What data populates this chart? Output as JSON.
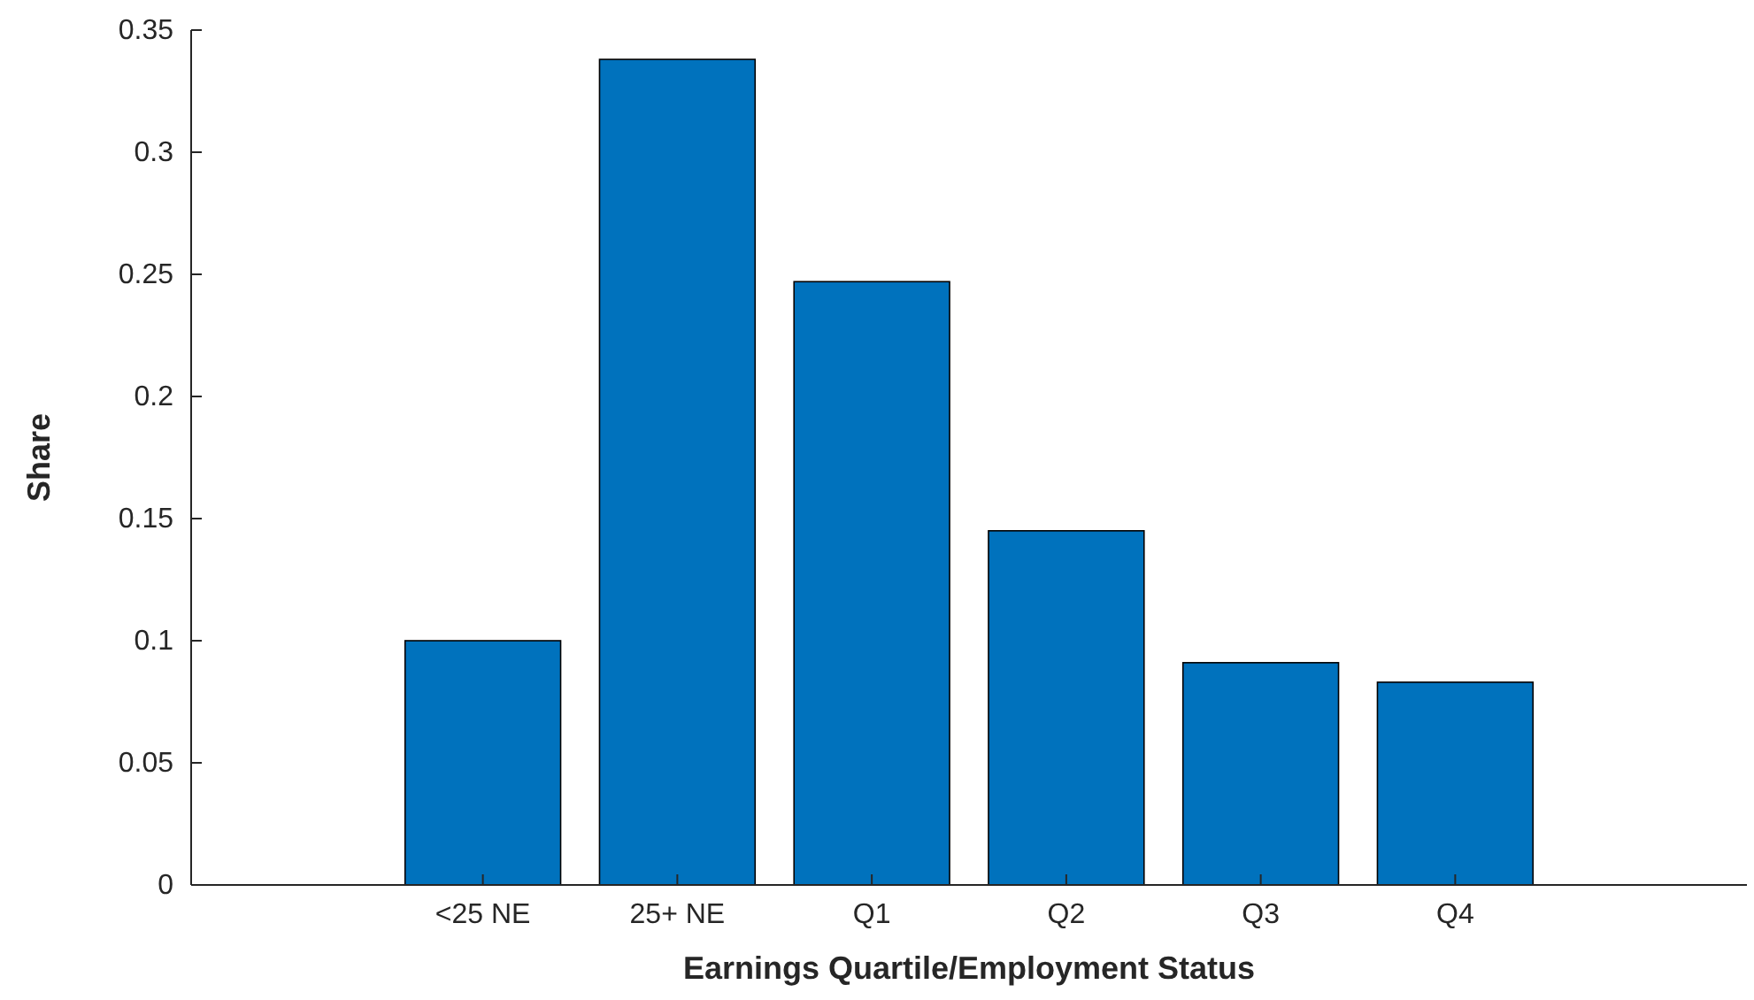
{
  "chart_data": {
    "type": "bar",
    "xlabel": "Earnings Quartile/Employment Status",
    "ylabel": "Share",
    "categories": [
      null,
      "<25 NE",
      "25+ NE",
      "Q1",
      "Q2",
      "Q3",
      "Q4",
      null
    ],
    "values": [
      null,
      0.1,
      0.338,
      0.247,
      0.145,
      0.091,
      0.083,
      null
    ],
    "color": "#0072bd",
    "ylim": [
      0,
      0.35
    ],
    "yticks": [
      0,
      0.05,
      0.1,
      0.15,
      0.2,
      0.25,
      0.3,
      0.35
    ],
    "grid": false
  }
}
